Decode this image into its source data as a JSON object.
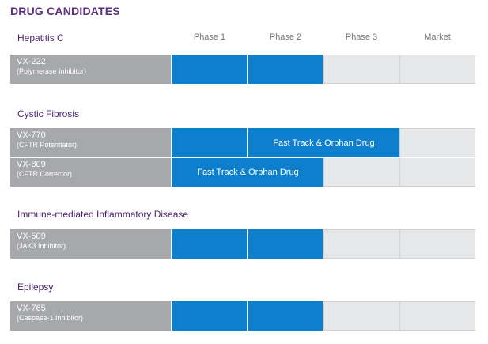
{
  "title": "DRUG CANDIDATES",
  "chart_data": {
    "type": "table",
    "phases": [
      "Phase 1",
      "Phase 2",
      "Phase 3",
      "Market"
    ],
    "sections": [
      {
        "name": "Hepatitis C",
        "drugs": [
          {
            "name": "VX-222",
            "description": "(Polymerase Inhibitor)",
            "phase_reached": 2,
            "note": ""
          }
        ]
      },
      {
        "name": "Cystic Fibrosis",
        "drugs": [
          {
            "name": "VX-770",
            "description": "(CFTR Potentiator)",
            "phase_reached": 3,
            "note": "Fast Track & Orphan Drug"
          },
          {
            "name": "VX-809",
            "description": "(CFTR Corrector)",
            "phase_reached": 2,
            "note": "Fast Track & Orphan Drug"
          }
        ]
      },
      {
        "name": "Immune-mediated Inflammatory Disease",
        "drugs": [
          {
            "name": "VX-509",
            "description": "(JAK3 Inhibitor)",
            "phase_reached": 2,
            "note": ""
          }
        ]
      },
      {
        "name": "Epilepsy",
        "drugs": [
          {
            "name": "VX-765",
            "description": "(Caspase-1 Inhibitor)",
            "phase_reached": 2,
            "note": ""
          }
        ]
      }
    ]
  },
  "colors": {
    "title": "#5b2d83",
    "section": "#4a1f6e",
    "drug_cell": "#a7a8ac",
    "progress": "#0d7fcc",
    "empty_cell": "#e6e7e8"
  }
}
